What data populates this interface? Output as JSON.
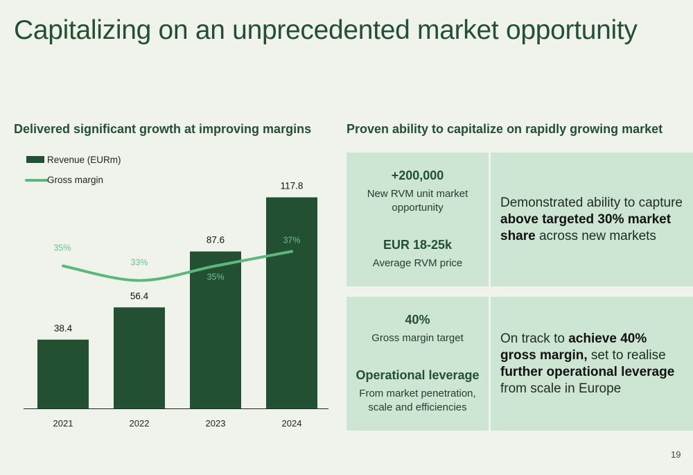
{
  "title": "Capitalizing on an unprecedented market opportunity",
  "left_section_title": "Delivered significant growth at improving margins",
  "right_section_title": "Proven ability to capitalize on rapidly growing market",
  "chart_data": {
    "type": "bar",
    "categories": [
      "2021",
      "2022",
      "2023",
      "2024"
    ],
    "series": [
      {
        "name": "Revenue (EURm)",
        "type": "bar",
        "values": [
          38.4,
          56.4,
          87.6,
          117.8
        ],
        "labels": [
          "38.4",
          "56.4",
          "87.6",
          "117.8"
        ],
        "color": "#234f33"
      },
      {
        "name": "Gross margin",
        "type": "line",
        "values": [
          35,
          33,
          35,
          37
        ],
        "labels": [
          "35%",
          "33%",
          "35%",
          "37%"
        ],
        "color": "#5cb87a"
      }
    ],
    "ylim": [
      0,
      125
    ],
    "title": "",
    "xlabel": "",
    "ylabel": "",
    "legend": "top-left",
    "grid": false
  },
  "panel1": {
    "stat1_value": "+200,000",
    "stat1_caption": "New RVM unit market opportunity",
    "stat2_value": "EUR 18-25k",
    "stat2_caption": "Average RVM price",
    "text_parts": [
      "Demonstrated ability to capture ",
      "above targeted 30% market share",
      " across new markets"
    ]
  },
  "panel2": {
    "stat1_value": "40%",
    "stat1_caption": "Gross margin target",
    "stat2_value": "Operational leverage",
    "stat2_caption": "From market penetration, scale and efficiencies",
    "text_parts": [
      "On track to ",
      "achieve 40% gross margin,",
      " set to realise ",
      "further operational leverage",
      " from scale in Europe"
    ]
  },
  "page_number": "19",
  "colors": {
    "bar": "#234f33",
    "line": "#5cb87a",
    "panel": "#cce6d3",
    "background": "#f0f3ec"
  }
}
